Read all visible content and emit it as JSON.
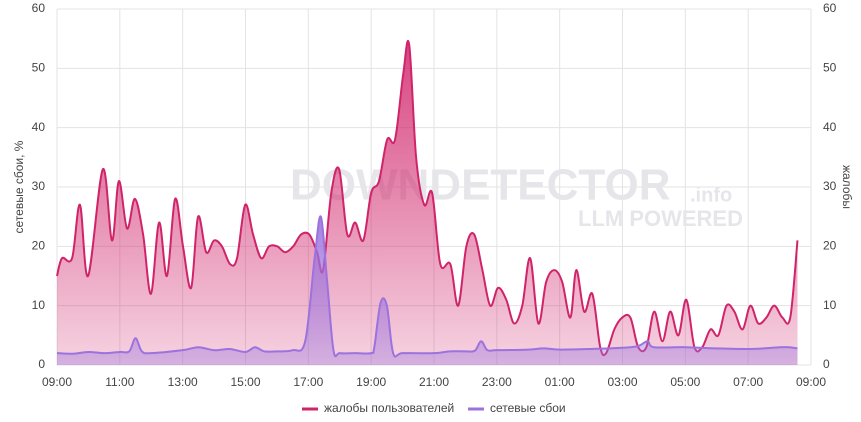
{
  "chart_data": {
    "type": "line",
    "y_label": "сетевые сбои, %",
    "y2_label": "жалобы",
    "watermark": [
      "DOWNDETECTOR",
      ".info",
      "LLM POWERED"
    ],
    "xlim": [
      0,
      24
    ],
    "xticks": [
      {
        "value": 0,
        "label": "09:00"
      },
      {
        "value": 2,
        "label": "11:00"
      },
      {
        "value": 4,
        "label": "13:00"
      },
      {
        "value": 6,
        "label": "15:00"
      },
      {
        "value": 8,
        "label": "17:00"
      },
      {
        "value": 10,
        "label": "19:00"
      },
      {
        "value": 12,
        "label": "21:00"
      },
      {
        "value": 14,
        "label": "23:00"
      },
      {
        "value": 16,
        "label": "01:00"
      },
      {
        "value": 18,
        "label": "03:00"
      },
      {
        "value": 20,
        "label": "05:00"
      },
      {
        "value": 22,
        "label": "07:00"
      },
      {
        "value": 24,
        "label": "09:00"
      }
    ],
    "ylim": [
      0,
      60
    ],
    "yticks": [
      0,
      10,
      20,
      30,
      40,
      50,
      60
    ],
    "y2lim": [
      0,
      60
    ],
    "y2ticks": [
      0,
      10,
      20,
      30,
      40,
      50,
      60
    ],
    "grid": true,
    "legend": "bottom",
    "series": [
      {
        "name": "жалобы пользователей",
        "color": "#d0246a",
        "axis": "y2",
        "x": [
          0,
          0.16,
          0.48,
          0.73,
          0.99,
          1.46,
          1.75,
          1.97,
          2.23,
          2.48,
          2.74,
          2.99,
          3.25,
          3.5,
          3.76,
          4.01,
          4.27,
          4.49,
          4.75,
          5.0,
          5.25,
          5.51,
          5.73,
          5.99,
          6.24,
          6.5,
          6.75,
          7.01,
          7.26,
          7.52,
          7.77,
          8.03,
          8.28,
          8.47,
          8.73,
          8.98,
          9.24,
          9.49,
          9.75,
          10.0,
          10.25,
          10.51,
          10.76,
          11.02,
          11.21,
          11.43,
          11.69,
          11.94,
          12.2,
          12.52,
          12.77,
          13.03,
          13.28,
          13.54,
          13.79,
          14.04,
          14.3,
          14.55,
          14.81,
          15.06,
          15.32,
          15.57,
          15.83,
          16.08,
          16.34,
          16.53,
          16.78,
          17.04,
          17.29,
          17.48,
          17.74,
          17.99,
          18.25,
          18.5,
          18.76,
          19.01,
          19.27,
          19.52,
          19.78,
          20.03,
          20.29,
          20.54,
          20.8,
          21.05,
          21.31,
          21.56,
          21.82,
          22.07,
          22.32,
          22.58,
          22.83,
          23.09,
          23.34,
          23.57
        ],
        "values": [
          15,
          18,
          18,
          27,
          15,
          33,
          21,
          31,
          23,
          28,
          22,
          12,
          24,
          15,
          28,
          20,
          13,
          25,
          19,
          21,
          20,
          17,
          18,
          27,
          22,
          18,
          20,
          20,
          19,
          20,
          22,
          22,
          19,
          16,
          29,
          33,
          22,
          24,
          21,
          29,
          31,
          38,
          38,
          49,
          54,
          35,
          27,
          29,
          17,
          17,
          10,
          20,
          22,
          16,
          10,
          13,
          11,
          7,
          10,
          18,
          7,
          14,
          16,
          14,
          8,
          16,
          9,
          12,
          3,
          2,
          6,
          8,
          8,
          3,
          3,
          9,
          4,
          9,
          5,
          11,
          3,
          3,
          6,
          5,
          10,
          9,
          6,
          10,
          7,
          8,
          10,
          8,
          8,
          21
        ]
      },
      {
        "name": "сетевые сбои",
        "color": "#9b72de",
        "axis": "y",
        "x": [
          0,
          0.5,
          1,
          1.5,
          2,
          2.3,
          2.5,
          2.7,
          3,
          4,
          4.5,
          5,
          5.5,
          6,
          6.3,
          6.6,
          7,
          7.5,
          7.9,
          8.2,
          8.4,
          8.6,
          8.8,
          9,
          9.5,
          10,
          10.1,
          10.3,
          10.5,
          10.7,
          11,
          12,
          12.5,
          13,
          13.3,
          13.5,
          13.7,
          14,
          15,
          15.5,
          16,
          17,
          18,
          18.5,
          18.8,
          19,
          20,
          21,
          22,
          22.5,
          23,
          23.3,
          23.57
        ],
        "values": [
          2,
          1.9,
          2.2,
          2,
          2.2,
          2.3,
          4.5,
          2.3,
          2,
          2.5,
          3,
          2.5,
          2.7,
          2.2,
          3,
          2.3,
          2.3,
          2.5,
          4,
          18,
          25,
          14,
          2.5,
          2,
          2,
          2,
          3,
          10.5,
          10,
          2,
          2,
          2,
          2.3,
          2.3,
          2.4,
          4,
          2.5,
          2.5,
          2.6,
          2.8,
          2.6,
          2.7,
          2.9,
          3.2,
          4,
          3,
          3,
          2.8,
          2.7,
          2.8,
          3,
          3,
          2.8
        ]
      }
    ]
  }
}
